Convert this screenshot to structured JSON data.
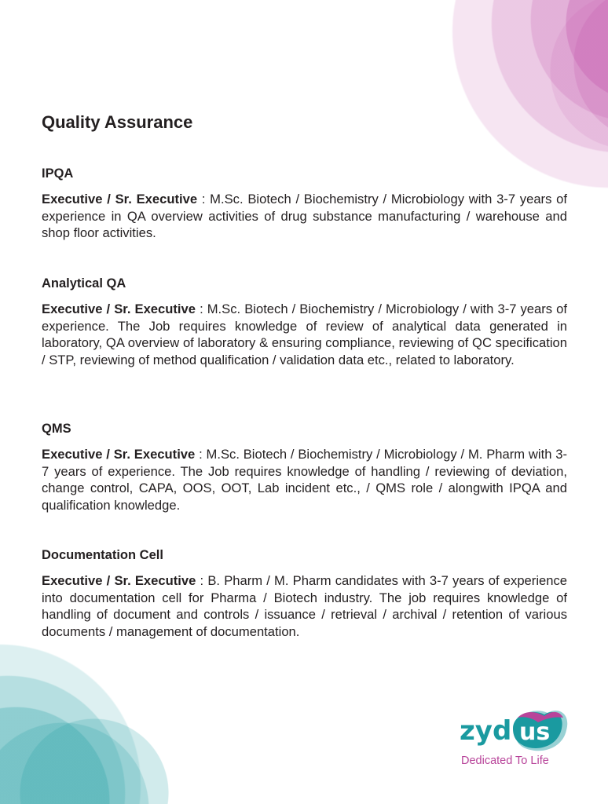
{
  "title": "Quality Assurance",
  "sections": [
    {
      "heading": "IPQA",
      "role": "Executive / Sr. Executive",
      "text": " : M.Sc. Biotech / Biochemistry / Microbiology with 3-7 years of experience in QA overview activities of drug substance manufacturing / warehouse and shop floor activities."
    },
    {
      "heading": "Analytical QA",
      "role": "Executive / Sr. Executive",
      "text": " : M.Sc. Biotech / Biochemistry / Microbiology / with 3-7 years of experience. The Job requires knowledge of review of analytical data generated in laboratory, QA overview of laboratory & ensuring compliance, reviewing of QC specification / STP, reviewing of method qualification / validation data etc., related to laboratory."
    },
    {
      "heading": "QMS",
      "role": "Executive / Sr. Executive",
      "text": " : M.Sc. Biotech / Biochemistry / Microbiology / M. Pharm with 3-7 years of experience. The Job requires knowledge of handling / reviewing of deviation, change control, CAPA, OOS, OOT, Lab incident etc., / QMS role / alongwith IPQA and qualification knowledge."
    },
    {
      "heading": "Documentation Cell",
      "role": "Executive / Sr. Executive",
      "text": " : B. Pharm / M. Pharm candidates with 3-7 years of experience into documentation cell for Pharma / Biotech industry. The job requires knowledge of handling of document and controls / issuance / retrieval / archival / retention of various documents / management of documentation."
    }
  ],
  "logo": {
    "wordmark": "zydus",
    "tagline": "Dedicated To Life"
  },
  "colors": {
    "magenta": "#b8449a",
    "teal": "#1a9aa0"
  }
}
